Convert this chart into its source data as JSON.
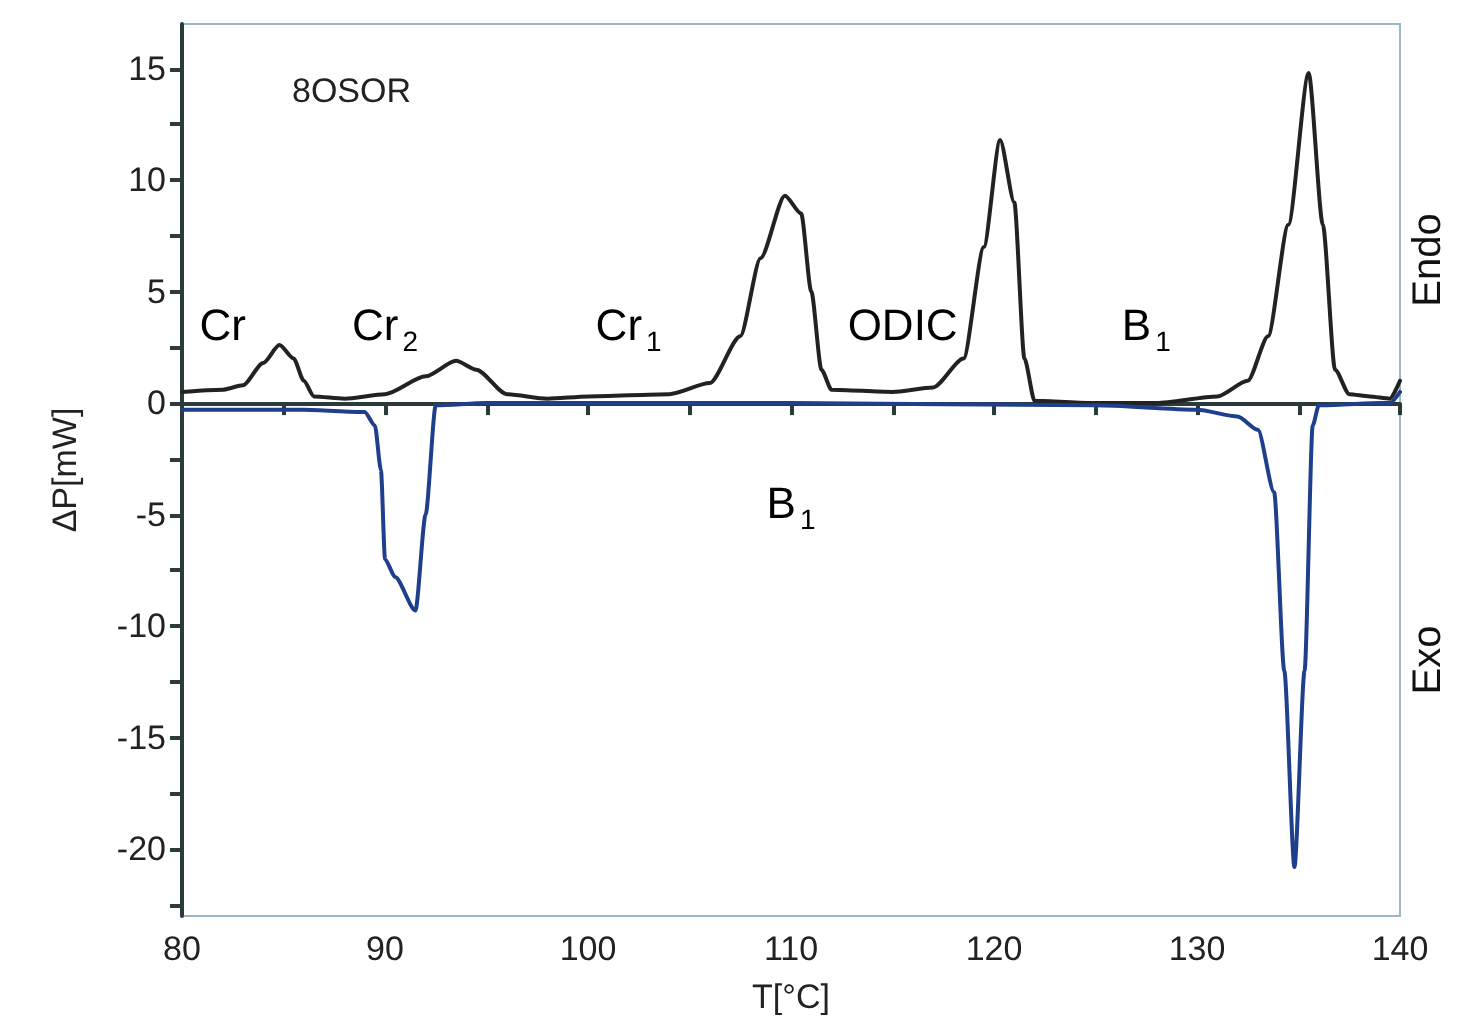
{
  "chart_data": {
    "type": "line",
    "title": "8OSOR",
    "xlabel": "T[°C]",
    "ylabel": "ΔP[mW]",
    "xlim": [
      80,
      140
    ],
    "xticks": [
      80,
      {
        "value": 85,
        "label": null
      },
      90,
      {
        "value": 95,
        "label": null
      },
      100,
      {
        "value": 105,
        "label": null
      },
      110,
      {
        "value": 115,
        "label": null
      },
      120,
      {
        "value": 125,
        "label": null
      },
      130,
      {
        "value": 135,
        "label": null
      },
      140
    ],
    "ylim": [
      -23,
      17
    ],
    "yticks": [
      {
        "value": -22.5,
        "label": null
      },
      -20,
      {
        "value": -17.5,
        "label": null
      },
      -15,
      {
        "value": -12.5,
        "label": null
      },
      -10,
      {
        "value": -7.5,
        "label": null
      },
      -5,
      {
        "value": -2.5,
        "label": null
      },
      0,
      {
        "value": 2.5,
        "label": null
      },
      5,
      {
        "value": 7.5,
        "label": null
      },
      10,
      {
        "value": 12.5,
        "label": null
      },
      15
    ],
    "series": [
      {
        "color": "#222222",
        "x": [
          80,
          82,
          83,
          84,
          84.8,
          85.5,
          86,
          86.5,
          88,
          90,
          92,
          93.5,
          94.5,
          96,
          98,
          100,
          104,
          106,
          107.5,
          108.5,
          109.7,
          110.5,
          111,
          111.5,
          112,
          115,
          117,
          118.5,
          119.5,
          120.3,
          121,
          121.5,
          122,
          125,
          128,
          131,
          132.5,
          133.5,
          134.5,
          135.5,
          136.2,
          136.8,
          137.5,
          138.5,
          139.5,
          140
        ],
        "values": [
          0.5,
          0.6,
          0.8,
          1.8,
          2.6,
          2.0,
          1.0,
          0.3,
          0.2,
          0.4,
          1.2,
          1.9,
          1.5,
          0.4,
          0.2,
          0.3,
          0.4,
          0.9,
          3,
          6.5,
          9.3,
          8.5,
          5,
          1.5,
          0.6,
          0.5,
          0.7,
          2,
          7,
          11.8,
          9,
          2,
          0.1,
          0,
          0,
          0.3,
          1,
          3,
          8,
          14.8,
          8,
          1.5,
          0.4,
          0.3,
          0.2,
          1.0
        ]
      },
      {
        "color": "#1f3e8c",
        "x": [
          80,
          86,
          89,
          89.5,
          89.8,
          90,
          90.5,
          91.5,
          92,
          92.5,
          95,
          110,
          125,
          130,
          132,
          133,
          133.8,
          134.3,
          134.8,
          135.3,
          135.7,
          136,
          139,
          139.5,
          140
        ],
        "values": [
          -0.3,
          -0.3,
          -0.4,
          -1,
          -3,
          -7,
          -7.8,
          -9.3,
          -5,
          -0.1,
          0,
          0,
          -0.1,
          -0.3,
          -0.6,
          -1.2,
          -4,
          -12,
          -20.8,
          -12,
          -1,
          -0.1,
          0,
          0,
          0.5
        ]
      }
    ],
    "annotations": [
      "Cr",
      "Cr$_{2}$",
      "Cr$_{1}$",
      "ODIC",
      "B$_{1}$",
      "B$_{1}$",
      "Endo",
      "Exo"
    ]
  }
}
